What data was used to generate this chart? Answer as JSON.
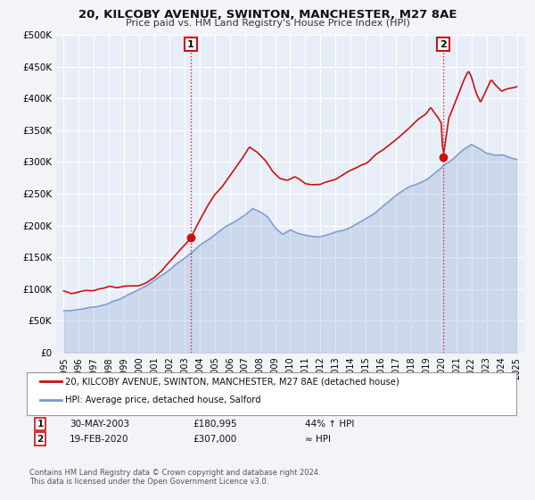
{
  "title": "20, KILCOBY AVENUE, SWINTON, MANCHESTER, M27 8AE",
  "subtitle": "Price paid vs. HM Land Registry's House Price Index (HPI)",
  "bg_color": "#f2f4f8",
  "plot_bg_color": "#e8eef8",
  "grid_color": "#ffffff",
  "red_line_color": "#cc1111",
  "blue_line_color": "#7799cc",
  "sale1_date": 2003.41,
  "sale1_price": 180995,
  "sale2_date": 2020.12,
  "sale2_price": 307000,
  "ylim_min": 0,
  "ylim_max": 500000,
  "yticks": [
    0,
    50000,
    100000,
    150000,
    200000,
    250000,
    300000,
    350000,
    400000,
    450000,
    500000
  ],
  "ytick_labels": [
    "£0",
    "£50K",
    "£100K",
    "£150K",
    "£200K",
    "£250K",
    "£300K",
    "£350K",
    "£400K",
    "£450K",
    "£500K"
  ],
  "xlim_min": 1994.5,
  "xlim_max": 2025.5,
  "xticks": [
    1995,
    1996,
    1997,
    1998,
    1999,
    2000,
    2001,
    2002,
    2003,
    2004,
    2005,
    2006,
    2007,
    2008,
    2009,
    2010,
    2011,
    2012,
    2013,
    2014,
    2015,
    2016,
    2017,
    2018,
    2019,
    2020,
    2021,
    2022,
    2023,
    2024,
    2025
  ],
  "legend_label_red": "20, KILCOBY AVENUE, SWINTON, MANCHESTER, M27 8AE (detached house)",
  "legend_label_blue": "HPI: Average price, detached house, Salford",
  "annotation1_date_str": "30-MAY-2003",
  "annotation1_price_str": "£180,995",
  "annotation1_hpi_str": "44% ↑ HPI",
  "annotation2_date_str": "19-FEB-2020",
  "annotation2_price_str": "£307,000",
  "annotation2_hpi_str": "≈ HPI",
  "footer1": "Contains HM Land Registry data © Crown copyright and database right 2024.",
  "footer2": "This data is licensed under the Open Government Licence v3.0."
}
